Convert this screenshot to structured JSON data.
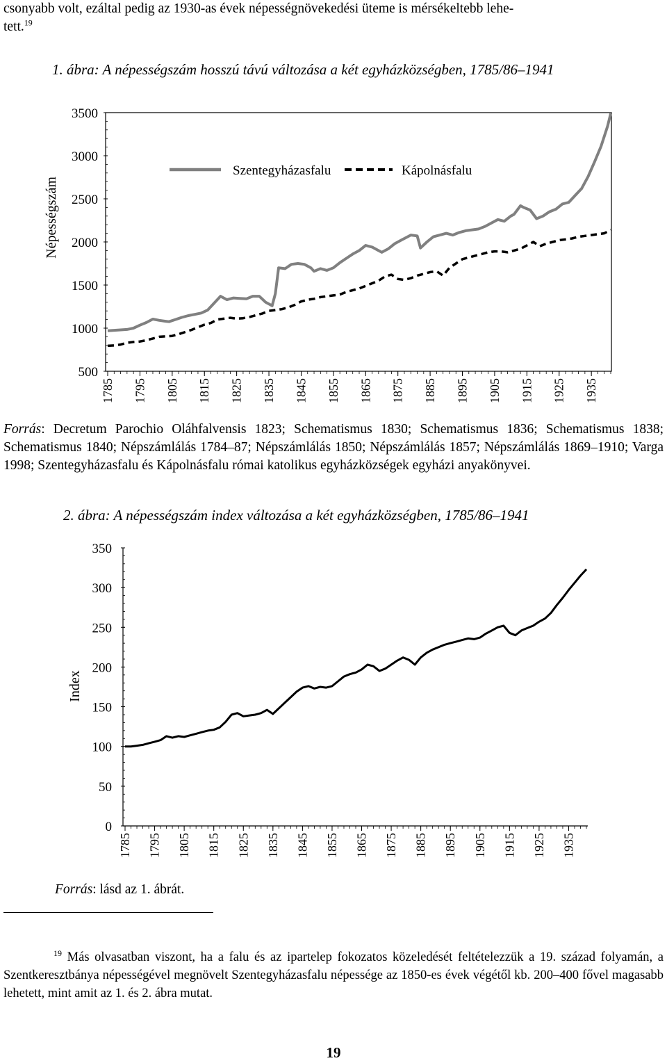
{
  "page": {
    "intro_text": "csonyabb volt, ezáltal pedig az 1930-as évek népességnövekedési üteme is mérsékeltebb lehe-tett.",
    "intro_line1": "csonyabb volt, ezáltal pedig az 1930-as évek népességnövekedési üteme is mérsékeltebb lehe-",
    "intro_line2": "tett.",
    "footnote_ref": "19",
    "page_number": "19"
  },
  "figure1": {
    "caption": "1. ábra: A népességszám hosszú távú változása a két egyházközségben, 1785/86–1941",
    "source_label": "Forrás",
    "source_text": ": Decretum Parochio Oláhfalvensis 1823; Schematismus 1830; Schematismus 1836; Schematismus 1838; Schematismus 1840; Népszámlálás 1784–87; Népszámlálás 1850; Népszámlálás 1857; Népszámlálás 1869–1910; Varga 1998; Szentegyházasfalu és Kápolnásfalu római katolikus egyházközségek egyházi anyakönyvei."
  },
  "figure2": {
    "caption": "2. ábra: A népességszám index változása a két egyházközségben, 1785/86–1941",
    "source_label": "Forrás",
    "source_text": ": lásd az 1. ábrát."
  },
  "footnote": {
    "number": "19",
    "text": "Más olvasatban viszont, ha a falu és az ipartelep fokozatos közeledését feltételezzük a 19. század folyamán, a Szentkeresztbánya népességével megnövelt Szentegyházasfalu népessége az 1850-es évek végétől kb. 200–400 fővel magasabb lehetett, mint amit az 1. és 2. ábra mutat."
  },
  "chart_data": [
    {
      "type": "line",
      "title": "1. ábra: A népességszám hosszú távú változása a két egyházközségben, 1785/86–1941",
      "xlabel": "",
      "ylabel": "Népességszám",
      "ylim": [
        500,
        3500
      ],
      "yticks": [
        "500",
        "1000",
        "1500",
        "2000",
        "2500",
        "3000",
        "3500"
      ],
      "xlim": [
        1785,
        1941
      ],
      "xticks": [
        "1785",
        "1795",
        "1805",
        "1815",
        "1825",
        "1835",
        "1845",
        "1855",
        "1865",
        "1875",
        "1885",
        "1895",
        "1905",
        "1915",
        "1925",
        "1935"
      ],
      "legend_position": "top-center",
      "grid": false,
      "series": [
        {
          "name": "Szentegyházasfalu",
          "color": "#808080",
          "style": "solid",
          "x": [
            1785,
            1787,
            1789,
            1791,
            1793,
            1795,
            1797,
            1799,
            1801,
            1803,
            1804,
            1806,
            1808,
            1810,
            1812,
            1814,
            1816,
            1818,
            1820,
            1822,
            1824,
            1826,
            1828,
            1830,
            1832,
            1834,
            1836,
            1837,
            1838,
            1840,
            1842,
            1844,
            1846,
            1848,
            1849,
            1851,
            1853,
            1855,
            1857,
            1859,
            1861,
            1863,
            1865,
            1867,
            1869,
            1870,
            1872,
            1874,
            1876,
            1878,
            1879,
            1881,
            1882,
            1884,
            1886,
            1888,
            1890,
            1892,
            1894,
            1896,
            1898,
            1900,
            1902,
            1904,
            1906,
            1908,
            1910,
            1911,
            1913,
            1914,
            1916,
            1918,
            1920,
            1922,
            1924,
            1926,
            1928,
            1930,
            1932,
            1934,
            1936,
            1938,
            1940,
            1941
          ],
          "values": [
            970,
            975,
            980,
            985,
            1000,
            1035,
            1065,
            1105,
            1090,
            1080,
            1075,
            1100,
            1125,
            1145,
            1160,
            1175,
            1210,
            1290,
            1370,
            1330,
            1350,
            1345,
            1340,
            1370,
            1370,
            1300,
            1260,
            1400,
            1700,
            1690,
            1740,
            1750,
            1740,
            1700,
            1660,
            1690,
            1670,
            1700,
            1760,
            1810,
            1860,
            1900,
            1960,
            1940,
            1900,
            1880,
            1920,
            1980,
            2020,
            2060,
            2080,
            2070,
            1930,
            2000,
            2060,
            2080,
            2100,
            2080,
            2110,
            2130,
            2140,
            2150,
            2180,
            2220,
            2260,
            2240,
            2300,
            2320,
            2420,
            2400,
            2370,
            2270,
            2300,
            2350,
            2380,
            2440,
            2460,
            2540,
            2620,
            2760,
            2930,
            3110,
            3340,
            3490
          ]
        },
        {
          "name": "Kápolnásfalu",
          "color": "#000000",
          "style": "dashed",
          "x": [
            1785,
            1787,
            1789,
            1791,
            1793,
            1795,
            1797,
            1799,
            1801,
            1803,
            1805,
            1807,
            1809,
            1811,
            1813,
            1815,
            1817,
            1819,
            1821,
            1823,
            1825,
            1827,
            1829,
            1831,
            1833,
            1835,
            1837,
            1839,
            1841,
            1843,
            1845,
            1847,
            1849,
            1851,
            1853,
            1855,
            1857,
            1859,
            1861,
            1863,
            1865,
            1867,
            1869,
            1871,
            1873,
            1875,
            1877,
            1879,
            1881,
            1883,
            1885,
            1887,
            1889,
            1891,
            1893,
            1895,
            1897,
            1899,
            1901,
            1903,
            1905,
            1907,
            1909,
            1911,
            1913,
            1915,
            1917,
            1919,
            1921,
            1923,
            1925,
            1927,
            1929,
            1931,
            1933,
            1935,
            1937,
            1939,
            1941
          ],
          "values": [
            795,
            800,
            810,
            830,
            840,
            845,
            860,
            880,
            900,
            905,
            910,
            930,
            955,
            980,
            1010,
            1040,
            1060,
            1100,
            1110,
            1120,
            1110,
            1115,
            1130,
            1150,
            1170,
            1200,
            1210,
            1220,
            1240,
            1270,
            1310,
            1330,
            1340,
            1360,
            1370,
            1380,
            1390,
            1420,
            1440,
            1460,
            1490,
            1520,
            1550,
            1600,
            1620,
            1570,
            1560,
            1580,
            1610,
            1630,
            1650,
            1660,
            1610,
            1700,
            1750,
            1800,
            1820,
            1840,
            1860,
            1880,
            1890,
            1890,
            1880,
            1900,
            1920,
            1960,
            2000,
            1950,
            1980,
            2000,
            2020,
            2030,
            2040,
            2060,
            2070,
            2080,
            2090,
            2100,
            2140
          ]
        }
      ]
    },
    {
      "type": "line",
      "title": "2. ábra: A népességszám index változása a két egyházközségben, 1785/86–1941",
      "xlabel": "",
      "ylabel": "Index",
      "ylim": [
        0,
        350
      ],
      "yticks": [
        "0",
        "50",
        "100",
        "150",
        "200",
        "250",
        "300",
        "350"
      ],
      "xlim": [
        1785,
        1941
      ],
      "xticks": [
        "1785",
        "1795",
        "1805",
        "1815",
        "1825",
        "1835",
        "1845",
        "1855",
        "1865",
        "1875",
        "1885",
        "1895",
        "1905",
        "1915",
        "1925",
        "1935"
      ],
      "grid": false,
      "series": [
        {
          "name": "Index",
          "color": "#000000",
          "style": "solid",
          "x": [
            1785,
            1787,
            1789,
            1791,
            1793,
            1795,
            1797,
            1799,
            1801,
            1803,
            1805,
            1807,
            1809,
            1811,
            1813,
            1815,
            1817,
            1819,
            1821,
            1823,
            1825,
            1827,
            1829,
            1831,
            1833,
            1835,
            1837,
            1839,
            1841,
            1843,
            1845,
            1847,
            1849,
            1851,
            1853,
            1855,
            1857,
            1859,
            1861,
            1863,
            1865,
            1867,
            1869,
            1871,
            1873,
            1875,
            1877,
            1879,
            1881,
            1883,
            1885,
            1887,
            1889,
            1891,
            1893,
            1895,
            1897,
            1899,
            1901,
            1903,
            1905,
            1907,
            1909,
            1911,
            1913,
            1915,
            1917,
            1919,
            1921,
            1923,
            1925,
            1927,
            1929,
            1931,
            1933,
            1935,
            1937,
            1939,
            1941
          ],
          "values": [
            100,
            100,
            101,
            102,
            104,
            106,
            108,
            113,
            111,
            113,
            112,
            114,
            116,
            118,
            120,
            121,
            124,
            131,
            140,
            142,
            138,
            139,
            140,
            142,
            146,
            141,
            148,
            155,
            162,
            169,
            174,
            176,
            173,
            175,
            174,
            176,
            182,
            188,
            191,
            193,
            197,
            203,
            201,
            195,
            198,
            203,
            208,
            212,
            209,
            203,
            212,
            218,
            222,
            225,
            228,
            230,
            232,
            234,
            236,
            235,
            237,
            242,
            246,
            250,
            252,
            243,
            240,
            246,
            249,
            252,
            257,
            261,
            268,
            278,
            287,
            297,
            306,
            315,
            323
          ]
        }
      ]
    }
  ]
}
